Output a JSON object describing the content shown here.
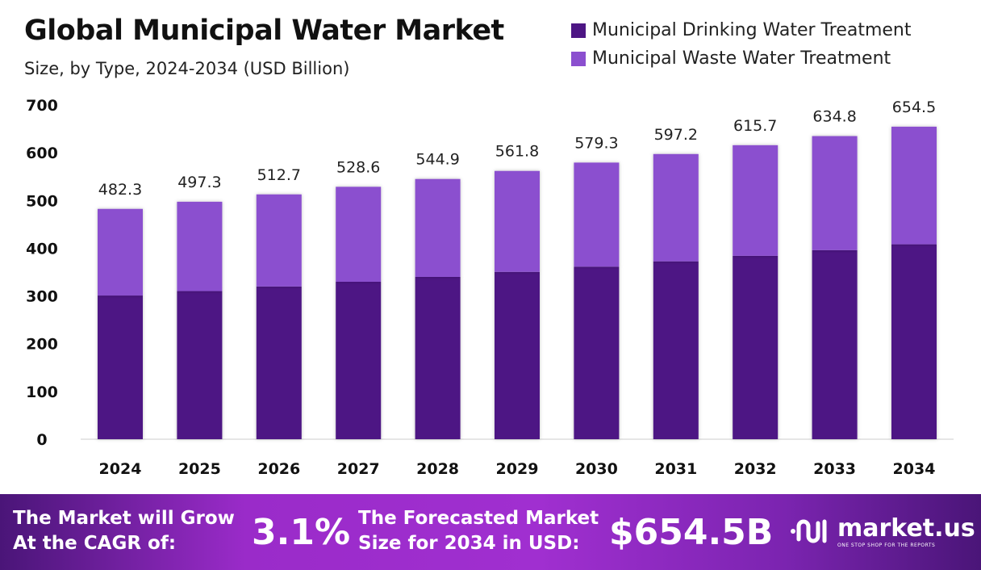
{
  "chart_data": {
    "type": "bar",
    "stacked": true,
    "title": "Global Municipal Water Market",
    "subtitle": "Size, by Type, 2024-2034 (USD Billion)",
    "categories": [
      "2024",
      "2025",
      "2026",
      "2027",
      "2028",
      "2029",
      "2030",
      "2031",
      "2032",
      "2033",
      "2034"
    ],
    "series": [
      {
        "name": "Municipal Drinking Water Treatment",
        "color": "#4d1684",
        "values": [
          300.9,
          310.2,
          319.8,
          329.7,
          339.9,
          350.4,
          361.3,
          372.5,
          384.0,
          395.9,
          408.2
        ]
      },
      {
        "name": "Municipal Waste Water Treatment",
        "color": "#8b4fcf",
        "values": [
          181.4,
          187.1,
          192.9,
          198.9,
          205.0,
          211.4,
          218.0,
          224.7,
          231.7,
          238.9,
          246.3
        ]
      }
    ],
    "totals": [
      "482.3",
      "497.3",
      "512.7",
      "528.6",
      "544.9",
      "561.8",
      "579.3",
      "597.2",
      "615.7",
      "634.8",
      "654.5"
    ],
    "yticks": [
      "0",
      "100",
      "200",
      "300",
      "400",
      "500",
      "600",
      "700"
    ],
    "ylim": [
      0,
      700
    ],
    "grid": false,
    "legend": "top-right"
  },
  "footer": {
    "cagr_label_1": "The Market will Grow",
    "cagr_label_2": "At the CAGR of:",
    "cagr_value": "3.1%",
    "forecast_label_1": "The Forecasted Market",
    "forecast_label_2": "Size for 2034 in USD:",
    "forecast_value": "$654.5B",
    "logo_name": "market.us",
    "logo_tagline": "ONE STOP SHOP FOR THE REPORTS"
  }
}
